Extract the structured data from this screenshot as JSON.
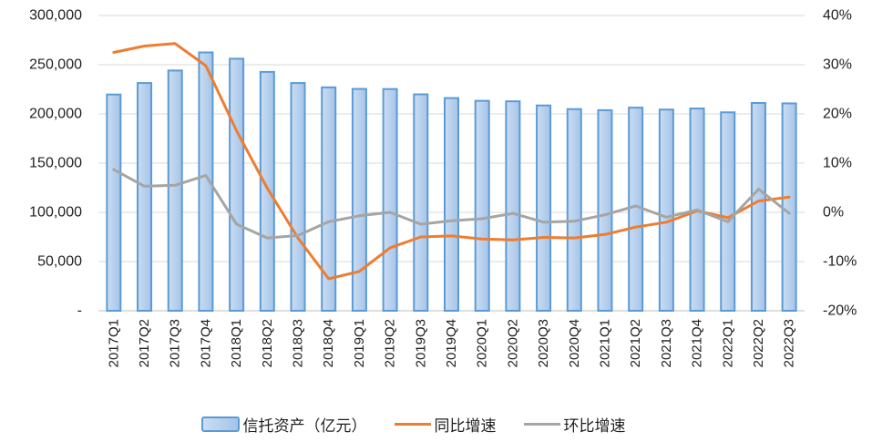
{
  "chart_data": {
    "type": "combo",
    "title": "",
    "categories": [
      "2017Q1",
      "2017Q2",
      "2017Q3",
      "2017Q4",
      "2018Q1",
      "2018Q2",
      "2018Q3",
      "2018Q4",
      "2019Q1",
      "2019Q2",
      "2019Q3",
      "2019Q4",
      "2020Q1",
      "2020Q2",
      "2020Q3",
      "2020Q4",
      "2021Q1",
      "2021Q2",
      "2021Q3",
      "2021Q4",
      "2022Q1",
      "2022Q2",
      "2022Q3"
    ],
    "series": [
      {
        "name": "信托资产（亿元）",
        "chart_type": "bar",
        "axis": "left",
        "values": [
          219700,
          231400,
          244100,
          262500,
          256100,
          242700,
          231400,
          227000,
          225400,
          225300,
          219900,
          216100,
          213300,
          212800,
          208600,
          204900,
          203800,
          206400,
          204400,
          205500,
          201600,
          211100,
          210700
        ]
      },
      {
        "name": "同比增速",
        "chart_type": "line",
        "axis": "right",
        "values": [
          32.5,
          33.8,
          34.3,
          29.8,
          16.6,
          4.9,
          -5.2,
          -13.5,
          -12.0,
          -7.2,
          -5.0,
          -4.8,
          -5.4,
          -5.6,
          -5.1,
          -5.2,
          -4.5,
          -3.0,
          -2.0,
          0.3,
          -1.1,
          2.3,
          3.1
        ]
      },
      {
        "name": "环比增速",
        "chart_type": "line",
        "axis": "right",
        "values": [
          8.7,
          5.3,
          5.5,
          7.5,
          -2.4,
          -5.2,
          -4.7,
          -1.9,
          -0.7,
          0.0,
          -2.4,
          -1.7,
          -1.3,
          -0.2,
          -2.0,
          -1.8,
          -0.5,
          1.3,
          -1.0,
          0.5,
          -1.9,
          4.7,
          -0.2
        ]
      }
    ],
    "left_axis": {
      "min": 0,
      "max": 300000,
      "step": 50000,
      "tick_labels_top_to_bottom": [
        "300,000",
        "250,000",
        "200,000",
        "150,000",
        "100,000",
        "50,000",
        "-"
      ]
    },
    "right_axis": {
      "min": -20,
      "max": 40,
      "step": 10,
      "tick_labels_top_to_bottom": [
        "40%",
        "30%",
        "20%",
        "10%",
        "0%",
        "-10%",
        "-20%"
      ]
    },
    "grid": true,
    "legend_position": "bottom"
  },
  "colors": {
    "bar_fill_light": "#CBDDF1",
    "bar_fill_dark": "#A5C4E9",
    "bar_border": "#5B9BD5",
    "yoy_line": "#ED7D31",
    "qoq_line": "#A5A5A5",
    "gridline": "#D9D9D9",
    "axis_line": "#BFBFBF",
    "text": "#1f1f1f"
  }
}
